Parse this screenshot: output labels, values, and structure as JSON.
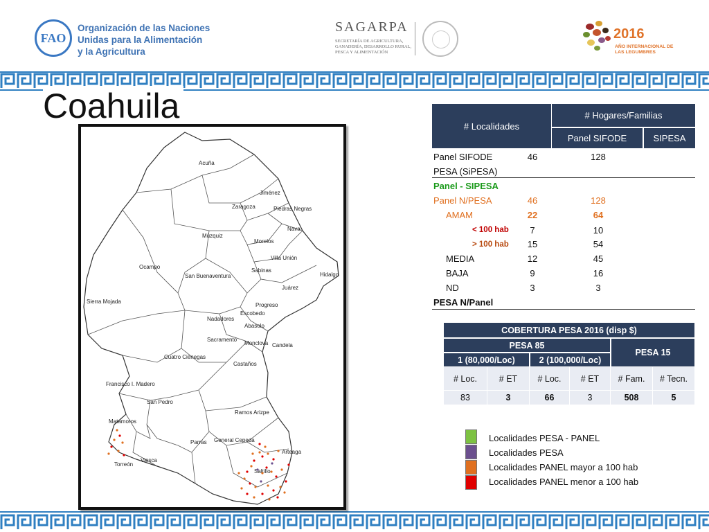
{
  "header": {
    "fao_emblem": "FAO",
    "fao_lines": [
      "Organización de las Naciones",
      "Unidas para la Alimentación",
      "y la Agricultura"
    ],
    "sagarpa_name": "SAGARPA",
    "sagarpa_sub": "Secretaría de Agricultura, Ganadería, Desarrollo Rural, Pesca y Alimentación",
    "legumes_year": "2016",
    "legumes_sub": "Año internacional de las legumbres"
  },
  "title": "Coahuila",
  "map": {
    "labels": [
      {
        "name": "Acuña",
        "key": "acuna"
      },
      {
        "name": "Jiménez",
        "key": "jimenez"
      },
      {
        "name": "Zaragoza",
        "key": "zaragoza"
      },
      {
        "name": "Piedras Negras",
        "key": "piedras-negras"
      },
      {
        "name": "Nava",
        "key": "nava"
      },
      {
        "name": "Múzquiz",
        "key": "muzquiz"
      },
      {
        "name": "Morelos",
        "key": "morelos"
      },
      {
        "name": "Villa Unión",
        "key": "villa-union"
      },
      {
        "name": "Ocampo",
        "key": "ocampo"
      },
      {
        "name": "Sabinas",
        "key": "sabinas"
      },
      {
        "name": "San Buenaventura",
        "key": "san-buenaventura"
      },
      {
        "name": "Hidalgo",
        "key": "hidalgo"
      },
      {
        "name": "Juárez",
        "key": "juarez"
      },
      {
        "name": "Sierra Mojada",
        "key": "sierra-mojada"
      },
      {
        "name": "Progreso",
        "key": "progreso"
      },
      {
        "name": "Escobedo",
        "key": "escobedo"
      },
      {
        "name": "Nadadores",
        "key": "nadadores"
      },
      {
        "name": "Abasolo",
        "key": "abasolo"
      },
      {
        "name": "Sacramento",
        "key": "sacramento"
      },
      {
        "name": "Monclova",
        "key": "monclova"
      },
      {
        "name": "Candela",
        "key": "candela"
      },
      {
        "name": "Cuatro Ciénegas",
        "key": "cuatro-cienegas"
      },
      {
        "name": "Castaños",
        "key": "castanos"
      },
      {
        "name": "Francisco I. Madero",
        "key": "francisco-madero"
      },
      {
        "name": "San Pedro",
        "key": "san-pedro"
      },
      {
        "name": "Ramos Arizpe",
        "key": "ramos-arizpe"
      },
      {
        "name": "Matamoros",
        "key": "matamoros"
      },
      {
        "name": "Parras",
        "key": "parras"
      },
      {
        "name": "General Cepeda",
        "key": "general-cepeda"
      },
      {
        "name": "Arteaga",
        "key": "arteaga"
      },
      {
        "name": "Torreón",
        "key": "torreon"
      },
      {
        "name": "Viesca",
        "key": "viesca"
      },
      {
        "name": "Saltillo",
        "key": "saltillo"
      }
    ],
    "colors": {
      "pesa_panel": "#7dc242",
      "pesa": "#6b4f8e",
      "panel_mayor": "#e07020",
      "panel_menor": "#e00000"
    }
  },
  "table1": {
    "head_localidades": "# Localidades",
    "head_hogares": "# Hogares/Familias",
    "head_panel_sifode": "Panel SIFODE",
    "head_sipesa": "SIPESA",
    "rows": [
      {
        "label": "Panel SIFODE",
        "loc": "46",
        "hog": "128"
      },
      {
        "label": "PESA (SiPESA)",
        "loc": "",
        "hog": ""
      },
      {
        "label": "Panel - SIPESA",
        "loc": "",
        "hog": ""
      },
      {
        "label": "Panel N/PESA",
        "loc": "46",
        "hog": "128"
      },
      {
        "label": "AMAM",
        "loc": "22",
        "hog": "64"
      },
      {
        "label": "< 100 hab",
        "loc": "7",
        "hog": "10"
      },
      {
        "label": "> 100 hab",
        "loc": "15",
        "hog": "54"
      },
      {
        "label": "MEDIA",
        "loc": "12",
        "hog": "45"
      },
      {
        "label": "BAJA",
        "loc": "9",
        "hog": "16"
      },
      {
        "label": "ND",
        "loc": "3",
        "hog": "3"
      },
      {
        "label": "PESA N/Panel",
        "loc": "",
        "hog": ""
      }
    ]
  },
  "table2": {
    "title": "COBERTURA PESA 2016 (disp $)",
    "pesa85": "PESA 85",
    "pesa15": "PESA 15",
    "group1": "1 (80,000/Loc)",
    "group2": "2 (100,000/Loc)",
    "cols": [
      "#  Loc.",
      "# ET",
      "# Loc.",
      "# ET",
      "# Fam.",
      "# Tecn."
    ],
    "values": [
      "83",
      "3",
      "66",
      "3",
      "508",
      "5"
    ]
  },
  "legend": [
    {
      "label": "Localidades PESA - PANEL",
      "color": "#7dc242"
    },
    {
      "label": "Localidades PESA",
      "color": "#6b4f8e"
    },
    {
      "label": "Localidades PANEL mayor a 100 hab",
      "color": "#e07020"
    },
    {
      "label": "Localidades PANEL menor a 100 hab",
      "color": "#e00000"
    }
  ]
}
